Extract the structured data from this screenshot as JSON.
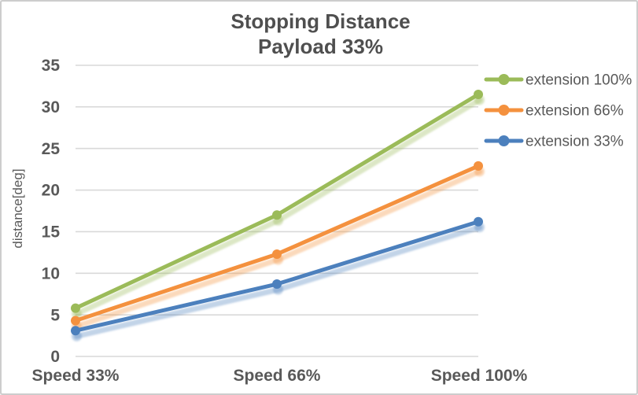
{
  "chart_data": {
    "type": "line",
    "title": "Stopping Distance",
    "subtitle": "Payload 33%",
    "categories": [
      "Speed 33%",
      "Speed 66%",
      "Speed 100%"
    ],
    "series": [
      {
        "name": "extension 100%",
        "values": [
          5.8,
          17.0,
          31.5
        ],
        "color": "#9BBB59"
      },
      {
        "name": "extension 66%",
        "values": [
          4.3,
          12.3,
          22.9
        ],
        "color": "#F4913E"
      },
      {
        "name": "extension 33%",
        "values": [
          3.1,
          8.7,
          16.2
        ],
        "color": "#4C80BD"
      }
    ],
    "xlabel": "",
    "ylabel": "distance[deg]",
    "ylim": [
      0,
      35
    ],
    "ytick_step": 5,
    "yticks": [
      0,
      5,
      10,
      15,
      20,
      25,
      30,
      35
    ],
    "grid": true,
    "legend_position": "right",
    "marker": "circle",
    "line_shadow": true,
    "colors": {
      "text": "#595959",
      "gridline": "#D9D9D9",
      "frame_border": "#CDCDCD",
      "background": "#FFFFFF"
    }
  }
}
